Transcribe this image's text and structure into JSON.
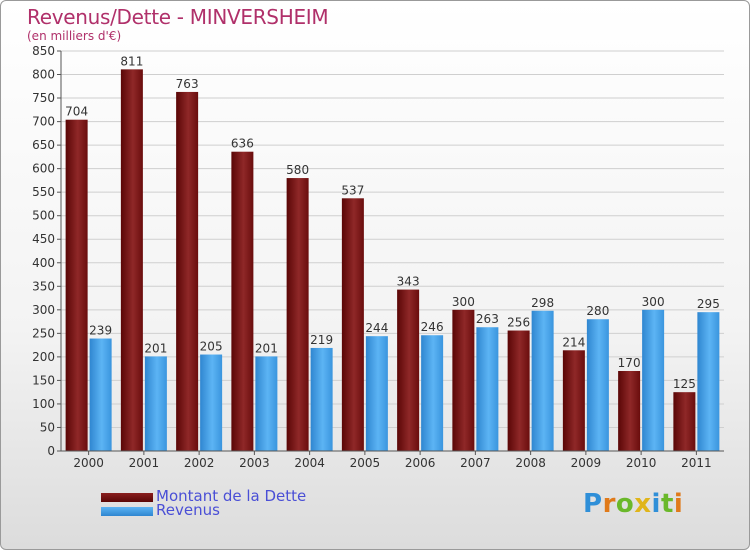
{
  "title": "Revenus/Dette - MINVERSHEIM",
  "subtitle": "(en milliers d'€)",
  "chart_data": {
    "type": "bar",
    "categories": [
      "2000",
      "2001",
      "2002",
      "2003",
      "2004",
      "2005",
      "2006",
      "2007",
      "2008",
      "2009",
      "2010",
      "2011"
    ],
    "series": [
      {
        "name": "Montant de la Dette",
        "color": "#7a1515",
        "values": [
          704,
          811,
          763,
          636,
          580,
          537,
          343,
          300,
          256,
          214,
          170,
          125
        ]
      },
      {
        "name": "Revenus",
        "color": "#3e9ee6",
        "values": [
          239,
          201,
          205,
          201,
          219,
          244,
          246,
          263,
          298,
          280,
          300,
          295
        ]
      }
    ],
    "ylim": [
      0,
      850
    ],
    "yticks": [
      0,
      50,
      100,
      150,
      200,
      250,
      300,
      350,
      400,
      450,
      500,
      550,
      600,
      650,
      700,
      750,
      800,
      850
    ],
    "grid": true,
    "legend_position": "bottom-left"
  },
  "legend": [
    {
      "label": "Montant de la Dette",
      "color": "#7a1515"
    },
    {
      "label": "Revenus",
      "color": "#3e9ee6"
    }
  ],
  "logo": {
    "letters": [
      "P",
      "r",
      "o",
      "x",
      "i",
      "t",
      "i"
    ]
  }
}
